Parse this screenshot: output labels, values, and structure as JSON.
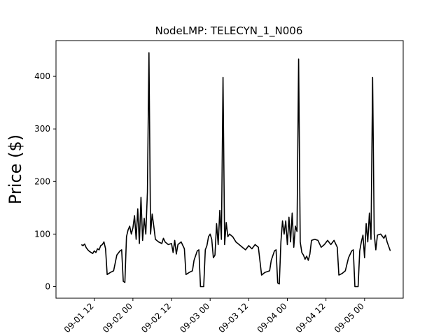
{
  "chart_data": {
    "type": "line",
    "title": "NodeLMP: TELECYN_1_N006",
    "xlabel": "",
    "ylabel": "Price ($)",
    "xlim": [
      "2023-09-01 00:06",
      "2023-09-05 12:00"
    ],
    "ylim": [
      -22,
      468
    ],
    "grid": false,
    "x_ticks": [
      "09-01 12",
      "09-02 00",
      "09-02 12",
      "09-03 00",
      "09-03 12",
      "09-04 00",
      "09-04 12",
      "09-05 00"
    ],
    "y_ticks": [
      0,
      100,
      200,
      300,
      400
    ],
    "series": [
      {
        "color": "#000000",
        "points": [
          [
            "2023-09-01 08:00",
            80
          ],
          [
            "2023-09-01 08:30",
            78
          ],
          [
            "2023-09-01 09:00",
            81
          ],
          [
            "2023-09-01 09:30",
            74
          ],
          [
            "2023-09-01 10:00",
            70
          ],
          [
            "2023-09-01 10:30",
            67
          ],
          [
            "2023-09-01 11:00",
            65
          ],
          [
            "2023-09-01 11:30",
            63
          ],
          [
            "2023-09-01 12:00",
            68
          ],
          [
            "2023-09-01 12:30",
            65
          ],
          [
            "2023-09-01 13:00",
            72
          ],
          [
            "2023-09-01 13:30",
            70
          ],
          [
            "2023-09-01 14:00",
            78
          ],
          [
            "2023-09-01 14:30",
            80
          ],
          [
            "2023-09-01 15:00",
            85
          ],
          [
            "2023-09-01 15:30",
            72
          ],
          [
            "2023-09-01 16:00",
            23
          ],
          [
            "2023-09-01 17:00",
            27
          ],
          [
            "2023-09-01 18:00",
            30
          ],
          [
            "2023-09-01 18:30",
            45
          ],
          [
            "2023-09-01 19:00",
            60
          ],
          [
            "2023-09-01 20:00",
            68
          ],
          [
            "2023-09-01 20:30",
            70
          ],
          [
            "2023-09-01 21:00",
            10
          ],
          [
            "2023-09-01 21:30",
            8
          ],
          [
            "2023-09-01 22:00",
            95
          ],
          [
            "2023-09-01 22:30",
            108
          ],
          [
            "2023-09-01 23:00",
            115
          ],
          [
            "2023-09-01 23:30",
            100
          ],
          [
            "2023-09-02 00:00",
            112
          ],
          [
            "2023-09-02 00:30",
            135
          ],
          [
            "2023-09-02 01:00",
            90
          ],
          [
            "2023-09-02 01:30",
            148
          ],
          [
            "2023-09-02 02:00",
            82
          ],
          [
            "2023-09-02 02:30",
            170
          ],
          [
            "2023-09-02 03:00",
            88
          ],
          [
            "2023-09-02 03:30",
            130
          ],
          [
            "2023-09-02 04:00",
            100
          ],
          [
            "2023-09-02 04:30",
            180
          ],
          [
            "2023-09-02 05:00",
            445
          ],
          [
            "2023-09-02 05:30",
            100
          ],
          [
            "2023-09-02 06:00",
            138
          ],
          [
            "2023-09-02 06:30",
            115
          ],
          [
            "2023-09-02 07:00",
            90
          ],
          [
            "2023-09-02 08:00",
            85
          ],
          [
            "2023-09-02 09:00",
            82
          ],
          [
            "2023-09-02 09:30",
            92
          ],
          [
            "2023-09-02 10:00",
            85
          ],
          [
            "2023-09-02 11:00",
            80
          ],
          [
            "2023-09-02 12:00",
            82
          ],
          [
            "2023-09-02 12:30",
            65
          ],
          [
            "2023-09-02 13:00",
            88
          ],
          [
            "2023-09-02 13:30",
            62
          ],
          [
            "2023-09-02 14:00",
            80
          ],
          [
            "2023-09-02 15:00",
            85
          ],
          [
            "2023-09-02 16:00",
            72
          ],
          [
            "2023-09-02 16:30",
            23
          ],
          [
            "2023-09-02 17:30",
            27
          ],
          [
            "2023-09-02 18:30",
            30
          ],
          [
            "2023-09-02 19:00",
            50
          ],
          [
            "2023-09-02 20:00",
            68
          ],
          [
            "2023-09-02 20:30",
            70
          ],
          [
            "2023-09-02 21:00",
            0
          ],
          [
            "2023-09-02 22:00",
            0
          ],
          [
            "2023-09-02 22:30",
            70
          ],
          [
            "2023-09-02 23:00",
            78
          ],
          [
            "2023-09-02 23:30",
            95
          ],
          [
            "2023-09-03 00:00",
            100
          ],
          [
            "2023-09-03 00:30",
            90
          ],
          [
            "2023-09-03 01:00",
            55
          ],
          [
            "2023-09-03 01:30",
            60
          ],
          [
            "2023-09-03 02:00",
            120
          ],
          [
            "2023-09-03 02:30",
            80
          ],
          [
            "2023-09-03 03:00",
            145
          ],
          [
            "2023-09-03 03:30",
            90
          ],
          [
            "2023-09-03 04:00",
            398
          ],
          [
            "2023-09-03 04:30",
            80
          ],
          [
            "2023-09-03 05:00",
            122
          ],
          [
            "2023-09-03 05:30",
            95
          ],
          [
            "2023-09-03 06:00",
            100
          ],
          [
            "2023-09-03 07:00",
            95
          ],
          [
            "2023-09-03 08:00",
            85
          ],
          [
            "2023-09-03 09:00",
            80
          ],
          [
            "2023-09-03 10:00",
            75
          ],
          [
            "2023-09-03 11:00",
            70
          ],
          [
            "2023-09-03 12:00",
            78
          ],
          [
            "2023-09-03 13:00",
            72
          ],
          [
            "2023-09-03 14:00",
            80
          ],
          [
            "2023-09-03 15:00",
            75
          ],
          [
            "2023-09-03 16:00",
            22
          ],
          [
            "2023-09-03 17:00",
            27
          ],
          [
            "2023-09-03 18:30",
            30
          ],
          [
            "2023-09-03 19:00",
            50
          ],
          [
            "2023-09-03 20:00",
            68
          ],
          [
            "2023-09-03 20:30",
            70
          ],
          [
            "2023-09-03 21:00",
            7
          ],
          [
            "2023-09-03 21:30",
            5
          ],
          [
            "2023-09-03 22:00",
            85
          ],
          [
            "2023-09-03 22:30",
            125
          ],
          [
            "2023-09-03 23:00",
            100
          ],
          [
            "2023-09-03 23:30",
            125
          ],
          [
            "2023-09-04 00:00",
            80
          ],
          [
            "2023-09-04 00:30",
            132
          ],
          [
            "2023-09-04 01:00",
            85
          ],
          [
            "2023-09-04 01:30",
            140
          ],
          [
            "2023-09-04 02:00",
            75
          ],
          [
            "2023-09-04 02:30",
            115
          ],
          [
            "2023-09-04 03:00",
            105
          ],
          [
            "2023-09-04 03:30",
            433
          ],
          [
            "2023-09-04 04:00",
            85
          ],
          [
            "2023-09-04 04:30",
            65
          ],
          [
            "2023-09-04 05:00",
            60
          ],
          [
            "2023-09-04 05:30",
            52
          ],
          [
            "2023-09-04 06:00",
            58
          ],
          [
            "2023-09-04 06:30",
            50
          ],
          [
            "2023-09-04 07:00",
            62
          ],
          [
            "2023-09-04 07:30",
            88
          ],
          [
            "2023-09-04 08:30",
            90
          ],
          [
            "2023-09-04 09:30",
            88
          ],
          [
            "2023-09-04 10:30",
            75
          ],
          [
            "2023-09-04 11:30",
            80
          ],
          [
            "2023-09-04 12:30",
            88
          ],
          [
            "2023-09-04 13:30",
            80
          ],
          [
            "2023-09-04 14:30",
            88
          ],
          [
            "2023-09-04 15:30",
            75
          ],
          [
            "2023-09-04 16:00",
            22
          ],
          [
            "2023-09-04 17:00",
            25
          ],
          [
            "2023-09-04 18:00",
            30
          ],
          [
            "2023-09-04 19:00",
            55
          ],
          [
            "2023-09-04 20:00",
            68
          ],
          [
            "2023-09-04 20:30",
            70
          ],
          [
            "2023-09-04 21:00",
            0
          ],
          [
            "2023-09-04 22:00",
            0
          ],
          [
            "2023-09-04 22:30",
            68
          ],
          [
            "2023-09-04 23:00",
            85
          ],
          [
            "2023-09-04 23:30",
            98
          ],
          [
            "2023-09-05 00:00",
            55
          ],
          [
            "2023-09-05 00:30",
            120
          ],
          [
            "2023-09-05 01:00",
            85
          ],
          [
            "2023-09-05 01:30",
            140
          ],
          [
            "2023-09-05 02:00",
            90
          ],
          [
            "2023-09-05 02:30",
            398
          ],
          [
            "2023-09-05 03:00",
            100
          ],
          [
            "2023-09-05 03:30",
            70
          ],
          [
            "2023-09-05 04:00",
            98
          ],
          [
            "2023-09-05 05:00",
            100
          ],
          [
            "2023-09-05 06:00",
            92
          ],
          [
            "2023-09-05 06:30",
            98
          ],
          [
            "2023-09-05 07:00",
            85
          ],
          [
            "2023-09-05 08:00",
            68
          ]
        ]
      }
    ]
  }
}
